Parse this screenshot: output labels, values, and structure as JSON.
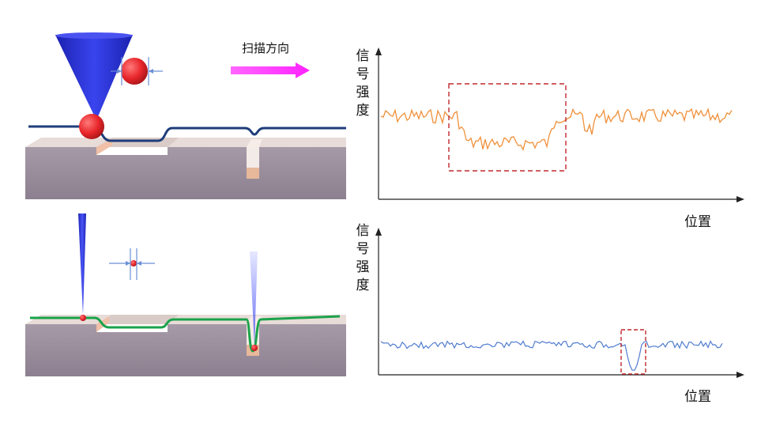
{
  "scan_direction_label": "扫描方向",
  "colors": {
    "tip_blue": "#2d35d8",
    "probe_red": "#e8262b",
    "top_profile": "#1f3d7a",
    "bottom_profile": "#1aa34a",
    "arrow_magenta": "#ff33ff",
    "signal_orange": "#f0903a",
    "signal_blue": "#4f7bd0",
    "highlight_box": "#c0282d"
  },
  "charts": [
    {
      "ylabel_chars": [
        "信",
        "号",
        "强",
        "度"
      ],
      "xlabel": "位置"
    },
    {
      "ylabel_chars": [
        "信",
        "号",
        "强",
        "度"
      ],
      "xlabel": "位置"
    }
  ]
}
